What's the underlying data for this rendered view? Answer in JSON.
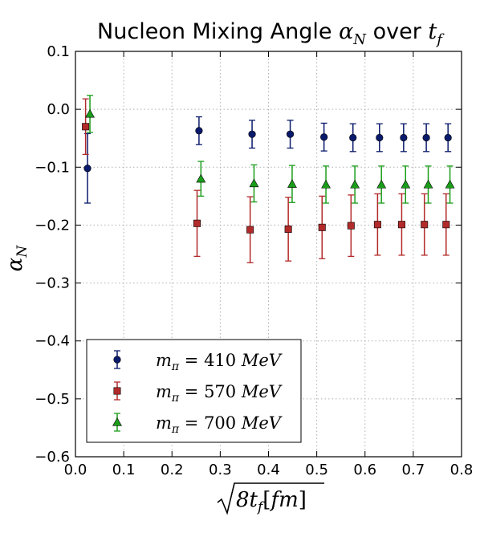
{
  "chart_data": {
    "type": "scatter",
    "title": "Nucleon Mixing Angle α_N over t_f",
    "xlabel": "√(8t_f) [fm]",
    "ylabel": "α_N",
    "xlim": [
      0.0,
      0.8
    ],
    "ylim": [
      -0.6,
      0.1
    ],
    "xticks": [
      "0.0",
      "0.1",
      "0.2",
      "0.3",
      "0.4",
      "0.5",
      "0.6",
      "0.7",
      "0.8"
    ],
    "yticks": [
      "0.1",
      "0.0",
      "−0.1",
      "−0.2",
      "−0.3",
      "−0.4",
      "−0.5",
      "−0.6"
    ],
    "grid": true,
    "legend_position": "lower-left",
    "series": [
      {
        "name": "m_π = 410 MeV",
        "marker": "circle",
        "color": "#0a1a6b",
        "x": [
          0.025,
          0.256,
          0.366,
          0.445,
          0.515,
          0.575,
          0.63,
          0.68,
          0.727,
          0.772
        ],
        "y": [
          -0.102,
          -0.037,
          -0.043,
          -0.043,
          -0.048,
          -0.049,
          -0.049,
          -0.049,
          -0.049,
          -0.049
        ],
        "err": [
          0.06,
          0.024,
          0.024,
          0.024,
          0.024,
          0.024,
          0.024,
          0.024,
          0.024,
          0.024
        ]
      },
      {
        "name": "m_π = 570 MeV",
        "marker": "square",
        "color": "#b22a2a",
        "x": [
          0.021,
          0.252,
          0.362,
          0.441,
          0.511,
          0.571,
          0.626,
          0.676,
          0.723,
          0.768
        ],
        "y": [
          -0.03,
          -0.197,
          -0.208,
          -0.207,
          -0.204,
          -0.201,
          -0.199,
          -0.199,
          -0.199,
          -0.199
        ],
        "err": [
          0.048,
          0.057,
          0.057,
          0.055,
          0.054,
          0.053,
          0.053,
          0.053,
          0.053,
          0.053
        ]
      },
      {
        "name": "m_π = 700 MeV",
        "marker": "triangle",
        "color": "#1a9e1a",
        "x": [
          0.03,
          0.26,
          0.37,
          0.449,
          0.519,
          0.579,
          0.634,
          0.684,
          0.731,
          0.776
        ],
        "y": [
          -0.008,
          -0.12,
          -0.128,
          -0.129,
          -0.13,
          -0.13,
          -0.13,
          -0.13,
          -0.13,
          -0.13
        ],
        "err": [
          0.032,
          0.03,
          0.032,
          0.032,
          0.032,
          0.032,
          0.032,
          0.032,
          0.032,
          0.032
        ]
      }
    ]
  }
}
